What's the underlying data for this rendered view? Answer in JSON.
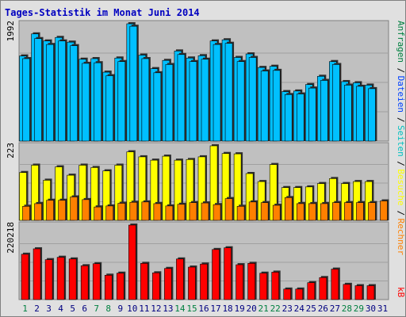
{
  "chart_data": {
    "type": "bar",
    "title": "Tages-Statistik im Monat Juni 2014",
    "categories": [
      "1",
      "2",
      "3",
      "4",
      "5",
      "6",
      "7",
      "8",
      "9",
      "10",
      "11",
      "12",
      "13",
      "14",
      "15",
      "16",
      "17",
      "18",
      "19",
      "20",
      "21",
      "22",
      "23",
      "24",
      "25",
      "26",
      "27",
      "28",
      "29",
      "30",
      "31"
    ],
    "weekend_days": [
      "1",
      "7",
      "8",
      "14",
      "15",
      "21",
      "22",
      "28",
      "29"
    ],
    "panels": [
      {
        "max_label": "1992",
        "series": [
          {
            "name": "Anfragen",
            "values": [
              1445,
              1820,
              1700,
              1760,
              1680,
              1390,
              1400,
              1170,
              1410,
              1992,
              1460,
              1230,
              1370,
              1530,
              1410,
              1450,
              1700,
              1720,
              1420,
              1480,
              1250,
              1270,
              840,
              850,
              960,
              1100,
              1350,
              1010,
              990,
              950,
              null
            ]
          },
          {
            "name": "Dateien",
            "values": [
              1400,
              1740,
              1640,
              1700,
              1620,
              1320,
              1330,
              1110,
              1350,
              1950,
              1400,
              1160,
              1300,
              1470,
              1350,
              1390,
              1640,
              1660,
              1350,
              1420,
              1190,
              1200,
              790,
              800,
              900,
              1030,
              1300,
              950,
              930,
              890,
              null
            ]
          }
        ]
      },
      {
        "max_label": "223",
        "series": [
          {
            "name": "Seiten",
            "values": [
              143,
              165,
              120,
              160,
              135,
              165,
              158,
              148,
              165,
              205,
              190,
              180,
              192,
              180,
              182,
              190,
              223,
              200,
              199,
              140,
              116,
              167,
              98,
              98,
              100,
              110,
              125,
              110,
              116,
              116,
              null
            ]
          },
          {
            "name": "Besuche",
            "values": [
              42,
              50,
              60,
              60,
              70,
              62,
              40,
              43,
              51,
              54,
              55,
              50,
              43,
              48,
              53,
              52,
              47,
              65,
              42,
              55,
              53,
              45,
              68,
              50,
              50,
              50,
              53,
              53,
              53,
              53,
              58
            ]
          },
          {
            "name": "Rechner",
            "values": [
              null,
              null,
              null,
              null,
              null,
              null,
              null,
              null,
              null,
              null,
              null,
              null,
              null,
              null,
              null,
              null,
              null,
              null,
              null,
              null,
              null,
              null,
              null,
              null,
              null,
              null,
              null,
              null,
              null,
              null,
              null
            ]
          }
        ]
      },
      {
        "max_label": "220218",
        "series": [
          {
            "name": "kB",
            "values": [
              134000,
              150000,
              118000,
              125000,
              120000,
              100000,
              106000,
              72000,
              78000,
              220218,
              107000,
              79000,
              92000,
              120000,
              96000,
              105000,
              148000,
              153000,
              103000,
              107000,
              78000,
              81000,
              31000,
              31000,
              50000,
              65000,
              90000,
              45000,
              41000,
              41000,
              null
            ]
          }
        ]
      }
    ],
    "right_labels": [
      {
        "text": "Anfragen",
        "color": "#008040"
      },
      {
        "text": "Dateien",
        "color": "#0040ff"
      },
      {
        "text": "Seiten",
        "color": "#00c0c0"
      },
      {
        "text": "Besuche",
        "color": "#ffff00"
      },
      {
        "text": "Rechner",
        "color": "#ff8000"
      },
      {
        "text": "kB",
        "color": "#ff0000"
      }
    ],
    "separator": "/",
    "colors": {
      "Anfragen": "#00c0ff",
      "Dateien": "#00c0ff",
      "Seiten": "#ffff00",
      "Besuche": "#ff8000",
      "kB": "#ff0000",
      "title": "#0000c0",
      "weekend_label": "#008040",
      "weekday_label": "#000080",
      "panel_bg": "#c0c0c0",
      "frame_bg": "#e0e0e0"
    },
    "grid": true
  }
}
